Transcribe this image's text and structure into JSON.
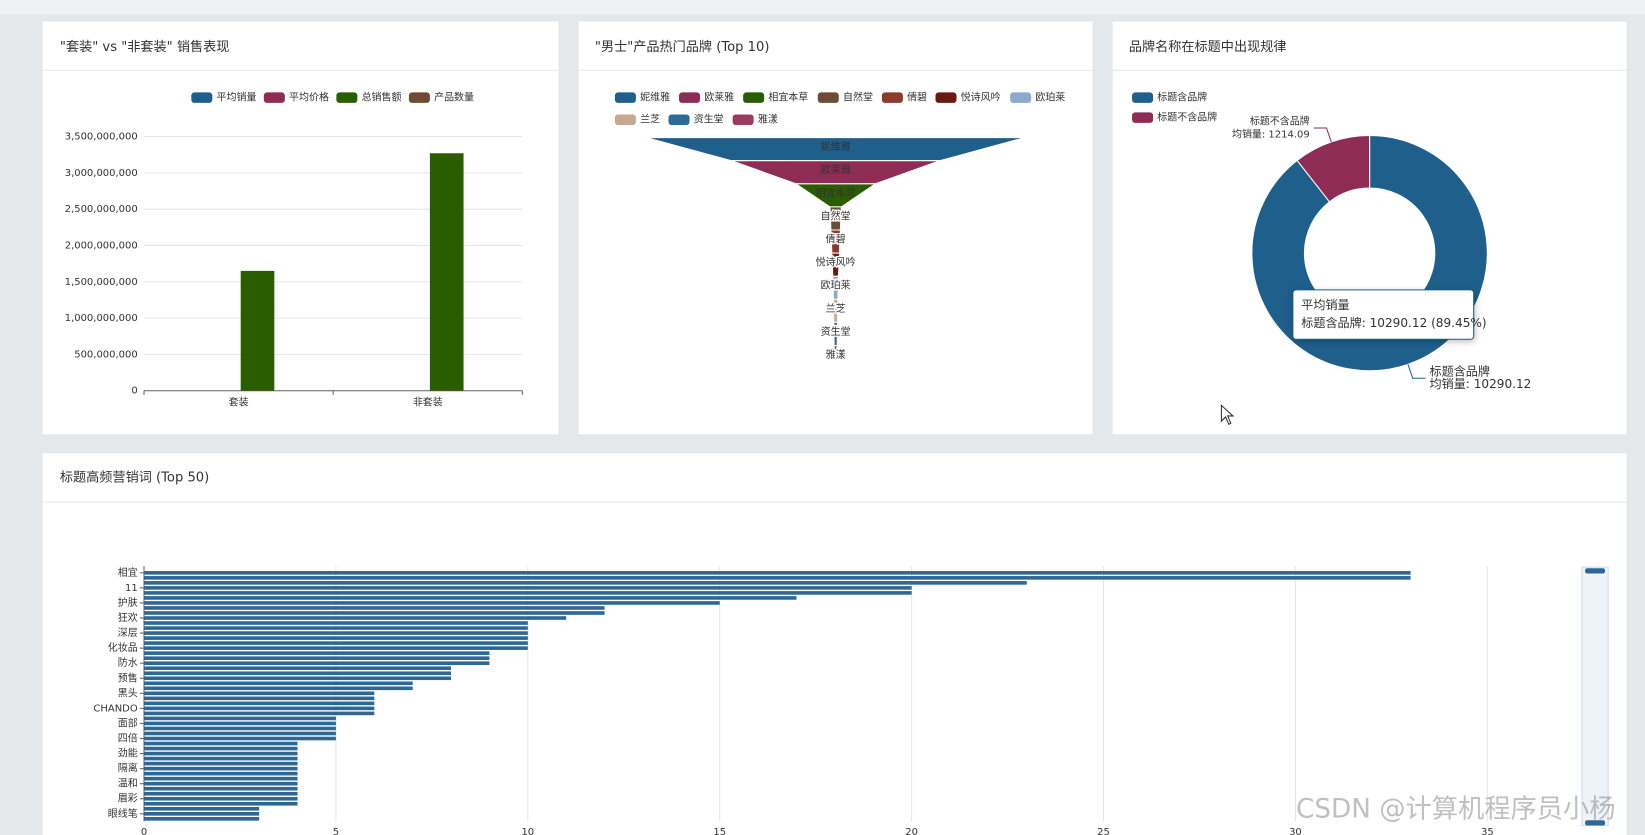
{
  "chart_data": [
    {
      "type": "bar",
      "title": "\"套装\" vs \"非套装\" 销售表现",
      "categories": [
        "套装",
        "非套装"
      ],
      "series": [
        {
          "name": "平均销量",
          "color": "#1f5f8b",
          "values": [
            0,
            0
          ]
        },
        {
          "name": "平均价格",
          "color": "#8e2c55",
          "values": [
            0,
            0
          ]
        },
        {
          "name": "总销售额",
          "color": "#2a5c00",
          "values": [
            1650000000,
            3270000000
          ]
        },
        {
          "name": "产品数量",
          "color": "#6e4c33",
          "values": [
            0,
            0
          ]
        }
      ],
      "ylim": [
        0,
        3500000000
      ],
      "yticks": [
        0,
        {
          "value": 500000000,
          "label": "500,000,000"
        },
        {
          "value": 1000000000,
          "label": "1,000,000,000"
        },
        {
          "value": 1500000000,
          "label": "1,500,000,000"
        },
        {
          "value": 2000000000,
          "label": "2,000,000,000"
        },
        {
          "value": 2500000000,
          "label": "2,500,000,000"
        },
        {
          "value": 3000000000,
          "label": "3,000,000,000"
        },
        {
          "value": 3500000000,
          "label": "3,500,000,000"
        }
      ],
      "grid": true,
      "legend": "top"
    },
    {
      "type": "funnel",
      "title": "\"男士\"产品热门品牌 (Top 10)",
      "categories": [
        "妮维雅",
        "欧莱雅",
        "相宜本草",
        "自然堂",
        "倩碧",
        "悦诗风吟",
        "欧珀莱",
        "兰芝",
        "资生堂",
        "雅漾"
      ],
      "values": [
        100,
        55,
        21,
        3,
        2.5,
        2,
        1.5,
        1.2,
        1,
        0.8
      ],
      "colors": [
        "#1f5f8b",
        "#8e2c55",
        "#2a5c00",
        "#6e4c33",
        "#8b3a2b",
        "#6b1a10",
        "#8fa8d0",
        "#c8a890",
        "#2a6b9a",
        "#9a3a62"
      ],
      "legend": "top"
    },
    {
      "type": "pie",
      "title": "品牌名称在标题中出现规律",
      "categories": [
        "标题含品牌",
        "标题不含品牌"
      ],
      "values": [
        10290.12,
        1214.09
      ],
      "value_labels": [
        "均销量: 10290.12",
        "均销量: 1214.09"
      ],
      "colors": [
        "#1f5f8b",
        "#8e2c55"
      ],
      "donut": true,
      "legend": "top-left",
      "tooltip": {
        "title": "平均销量",
        "text": "标题含品牌: 10290.12 (89.45%)"
      }
    },
    {
      "type": "hbar",
      "title": "标题高频营销词 (Top 50)",
      "categories": [
        "相宜",
        null,
        null,
        "11",
        null,
        null,
        "护肤",
        null,
        null,
        "狂欢",
        null,
        null,
        "深层",
        null,
        null,
        "化妆品",
        null,
        null,
        "防水",
        null,
        null,
        "预售",
        null,
        null,
        "黑头",
        null,
        null,
        "CHANDO",
        null,
        null,
        "面部",
        null,
        null,
        "四倍",
        null,
        null,
        "劲能",
        null,
        null,
        "隔离",
        null,
        null,
        "温和",
        null,
        null,
        "眉彩",
        null,
        null,
        "眼线笔",
        null
      ],
      "values": [
        33,
        33,
        23,
        20,
        20,
        17,
        15,
        12,
        12,
        11,
        10,
        10,
        10,
        10,
        10,
        10,
        9,
        9,
        9,
        8,
        8,
        8,
        7,
        7,
        6,
        6,
        6,
        6,
        6,
        5,
        5,
        5,
        5,
        5,
        4,
        4,
        4,
        4,
        4,
        4,
        4,
        4,
        4,
        4,
        4,
        4,
        4,
        3,
        3,
        3
      ],
      "color": "#2f6794",
      "xlim": [
        0,
        35
      ],
      "xticks": [
        0,
        5,
        10,
        15,
        20,
        25,
        30,
        35
      ],
      "grid": true
    }
  ],
  "watermark": "CSDN @计算机程序员小杨"
}
